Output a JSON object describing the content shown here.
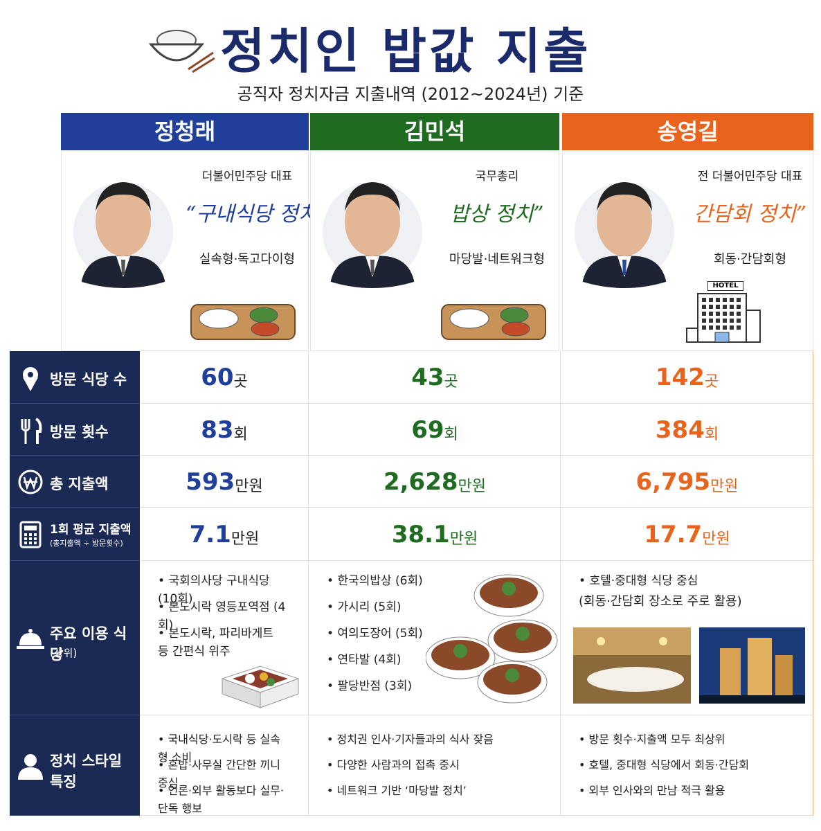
{
  "header": {
    "title": "정치인 밥값 지출",
    "subtitle": "공직자 정치자금 지출내역 (2012~2024년) 기준"
  },
  "people": [
    {
      "name": "정청래",
      "role": "더불어민주당 대표",
      "slogan": "“구내식당 정치”",
      "style": "실속형·독고다이형"
    },
    {
      "name": "김민석",
      "role": "국무총리",
      "slogan": "밥상 정치”",
      "style": "마당발·네트워크형"
    },
    {
      "name": "송영길",
      "role": "전 더불어민주당 대표",
      "slogan": "간담회 정치”",
      "style": "회동·간담회형",
      "badge": "HOTEL"
    }
  ],
  "rows": [
    {
      "label": "방문 식당 수",
      "cells": [
        {
          "value": "60",
          "unit": "곳"
        },
        {
          "value": "43",
          "unit": "곳"
        },
        {
          "value": "142",
          "unit": "곳"
        }
      ]
    },
    {
      "label": "방문 횟수",
      "cells": [
        {
          "value": "83",
          "unit": "회"
        },
        {
          "value": "69",
          "unit": "회"
        },
        {
          "value": "384",
          "unit": "회"
        }
      ]
    },
    {
      "label": "총 지출액",
      "cells": [
        {
          "value": "593",
          "unit": "만원"
        },
        {
          "value": "2,628",
          "unit": "만원"
        },
        {
          "value": "6,795",
          "unit": "만원"
        }
      ]
    },
    {
      "label": "1회 평균 지출액",
      "sublabel": "(총지출액 ÷ 방문횟수)",
      "cells": [
        {
          "value": "7.1",
          "unit": "만원"
        },
        {
          "value": "38.1",
          "unit": "만원"
        },
        {
          "value": "17.7",
          "unit": "만원"
        }
      ]
    }
  ],
  "restaurants": {
    "label": "주요 이용 식당",
    "sublabel": "(상위)",
    "cells": [
      [
        "국회의사당 구내식당 (10회)",
        "본도시락 영등포역점 (4회)",
        "본도시락, 파리바게트 등 간편식 위주"
      ],
      [
        "한국의밥상 (6회)",
        "가시리 (5회)",
        "여의도장어 (5회)",
        "연타발 (4회)",
        "팔당반점 (3회)"
      ],
      [
        "호텔·중대형 식당 중심"
      ]
    ],
    "note": "(회동·간담회 장소로 주로 활용)"
  },
  "style": {
    "label": "정치 스타일 특징",
    "cells": [
      [
        "국내식당·도시락 등 실속형 소비",
        "혼밥·사무실 간단한 끼니 중심",
        "언론·외부 활동보다 실무·단독 행보"
      ],
      [
        "정치권 인사·기자들과의 식사 잦음",
        "다양한 사람과의 접촉 중시",
        "네트워크 기반 ‘마당발 정치’"
      ],
      [
        "방문 횟수·지출액 모두 최상위",
        "호텔, 중대형 식당에서 회동·간담회",
        "외부 인사와의 만남 적극 활용"
      ]
    ]
  }
}
